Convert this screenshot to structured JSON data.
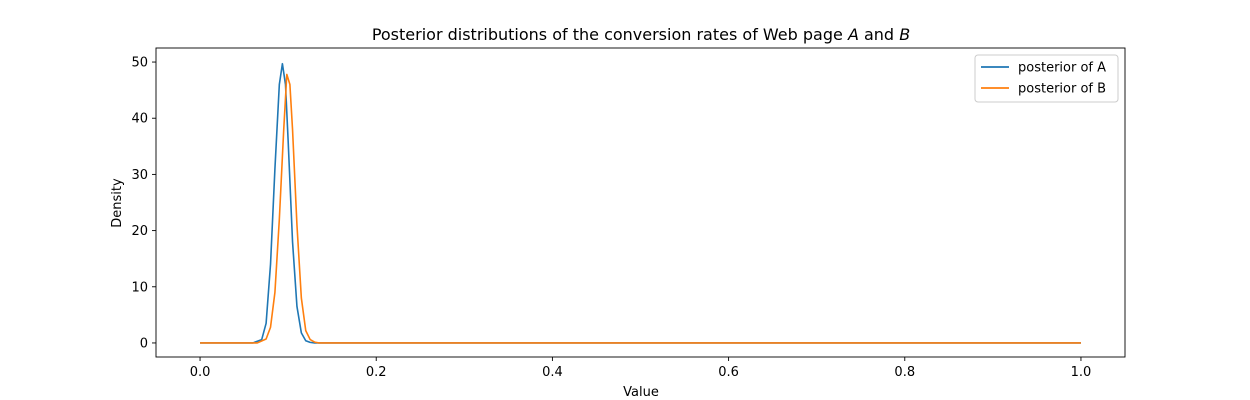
{
  "chart_data": {
    "type": "line",
    "title": "Posterior distributions of the conversion rates of Web page",
    "title_var_a": "A",
    "title_conj": "and",
    "title_var_b": "B",
    "xlabel": "Value",
    "ylabel": "Density",
    "xlim": [
      -0.05,
      1.05
    ],
    "ylim": [
      -2.5,
      52.5
    ],
    "xticks": [
      0.0,
      0.2,
      0.4,
      0.6,
      0.8,
      1.0
    ],
    "xtick_labels": [
      "0.0",
      "0.2",
      "0.4",
      "0.6",
      "0.8",
      "1.0"
    ],
    "yticks": [
      0,
      10,
      20,
      30,
      40,
      50
    ],
    "ytick_labels": [
      "0",
      "10",
      "20",
      "30",
      "40",
      "50"
    ],
    "grid": false,
    "legend_position": "top-right",
    "series": [
      {
        "name": "posterior of A",
        "color": "#1f77b4",
        "x": [
          0.0,
          0.06,
          0.07,
          0.075,
          0.08,
          0.085,
          0.09,
          0.0935,
          0.097,
          0.1,
          0.105,
          0.11,
          0.115,
          0.12,
          0.125,
          0.13,
          0.15,
          1.0
        ],
        "y": [
          0,
          0,
          0.6,
          3.5,
          14,
          31,
          46,
          49.7,
          46,
          36,
          18,
          6.5,
          1.8,
          0.4,
          0.1,
          0,
          0,
          0
        ]
      },
      {
        "name": "posterior of B",
        "color": "#ff7f0e",
        "x": [
          0.0,
          0.065,
          0.075,
          0.08,
          0.085,
          0.09,
          0.095,
          0.0985,
          0.102,
          0.105,
          0.11,
          0.115,
          0.12,
          0.125,
          0.13,
          0.135,
          0.15,
          1.0
        ],
        "y": [
          0,
          0,
          0.7,
          2.8,
          9,
          22,
          38,
          47.8,
          46,
          38,
          21,
          8,
          2.2,
          0.6,
          0.15,
          0,
          0,
          0
        ]
      }
    ]
  }
}
